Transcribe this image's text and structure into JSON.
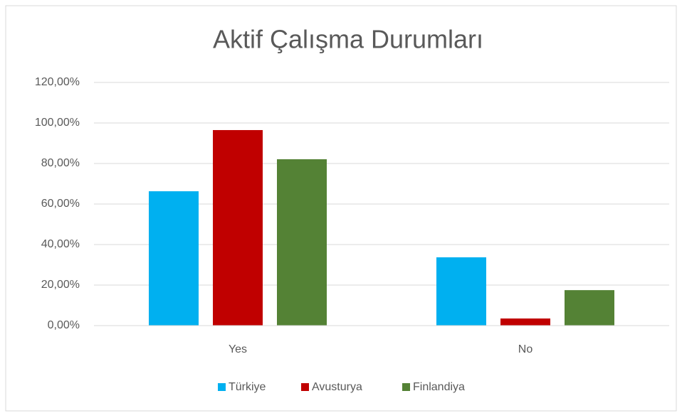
{
  "chart_data": {
    "type": "bar",
    "title": "Aktif Çalışma Durumları",
    "categories": [
      "Yes",
      "No"
    ],
    "series": [
      {
        "name": "Türkiye",
        "color": "#00b0f0",
        "values": [
          66.3,
          33.7
        ]
      },
      {
        "name": "Avusturya",
        "color": "#c00000",
        "values": [
          96.5,
          3.5
        ]
      },
      {
        "name": "Finlandiya",
        "color": "#548235",
        "values": [
          82.1,
          17.5
        ]
      }
    ],
    "ylim": [
      0,
      120
    ],
    "yticks": [
      {
        "value": 0,
        "label": "0,00%"
      },
      {
        "value": 20,
        "label": "20,00%"
      },
      {
        "value": 40,
        "label": "40,00%"
      },
      {
        "value": 60,
        "label": "60,00%"
      },
      {
        "value": 80,
        "label": "80,00%"
      },
      {
        "value": 100,
        "label": "100,00%"
      },
      {
        "value": 120,
        "label": "120,00%"
      }
    ],
    "grid": true,
    "legend": "bottom"
  }
}
